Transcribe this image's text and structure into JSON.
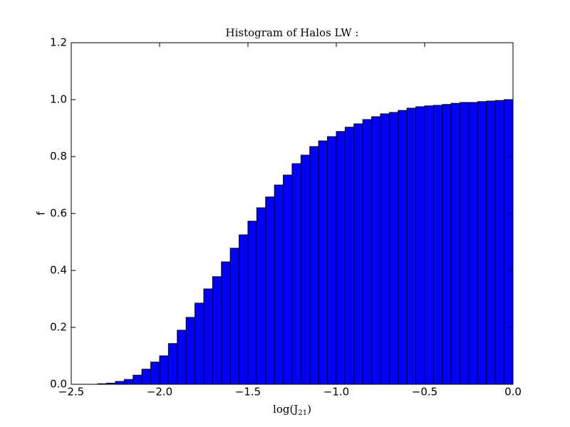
{
  "chart_data": {
    "type": "histogram",
    "title": "Histogram of Halos LW :",
    "xlabel": [
      "log(J",
      "21",
      ")"
    ],
    "ylabel": "f",
    "color": "#0000ff",
    "edgecolor": "#000000",
    "bins": [
      -2.5,
      -2.45,
      -2.4,
      -2.35,
      -2.3,
      -2.25,
      -2.2,
      -2.15,
      -2.1,
      -2.05,
      -2.0,
      -1.95,
      -1.9,
      -1.85,
      -1.8,
      -1.75,
      -1.7,
      -1.65,
      -1.6,
      -1.55,
      -1.5,
      -1.45,
      -1.4,
      -1.35,
      -1.3,
      -1.25,
      -1.2,
      -1.15,
      -1.1,
      -1.05,
      -1.0,
      -0.95,
      -0.9,
      -0.85,
      -0.8,
      -0.75,
      -0.7,
      -0.65,
      -0.6,
      -0.55,
      -0.5,
      -0.45,
      -0.4,
      -0.35,
      -0.3,
      -0.25,
      -0.2,
      -0.15,
      -0.1,
      -0.05,
      0.0
    ],
    "values": [
      0,
      0,
      0,
      0.002,
      0.004,
      0.01,
      0.017,
      0.032,
      0.053,
      0.078,
      0.1,
      0.143,
      0.19,
      0.235,
      0.285,
      0.335,
      0.378,
      0.43,
      0.478,
      0.525,
      0.573,
      0.62,
      0.658,
      0.7,
      0.735,
      0.775,
      0.805,
      0.835,
      0.855,
      0.87,
      0.888,
      0.903,
      0.915,
      0.93,
      0.94,
      0.95,
      0.955,
      0.962,
      0.97,
      0.975,
      0.978,
      0.98,
      0.983,
      0.987,
      0.99,
      0.99,
      0.993,
      0.995,
      0.997,
      1.0
    ],
    "xlim": [
      -2.5,
      0.0
    ],
    "ylim": [
      0.0,
      1.2
    ],
    "xticks": [
      {
        "value": -2.5,
        "label": "−2.5"
      },
      {
        "value": -2.0,
        "label": "−2.0"
      },
      {
        "value": -1.5,
        "label": "−1.5"
      },
      {
        "value": -1.0,
        "label": "−1.0"
      },
      {
        "value": -0.5,
        "label": "−0.5"
      },
      {
        "value": 0.0,
        "label": "0.0"
      }
    ],
    "yticks": [
      {
        "value": 0.0,
        "label": "0.0"
      },
      0.2,
      0.4,
      0.6,
      0.8,
      {
        "value": 1.0,
        "label": "1.0"
      },
      1.2
    ]
  }
}
